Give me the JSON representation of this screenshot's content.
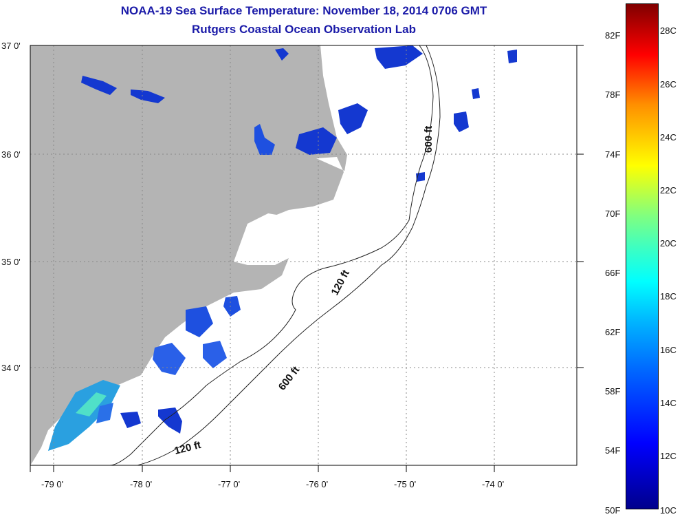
{
  "title": {
    "line1": "NOAA-19 Sea Surface Temperature:  November 18, 2014 0706 GMT",
    "line2": "Rutgers Coastal Ocean Observation Lab"
  },
  "axes": {
    "lat_labels": [
      "37 0'",
      "36 0'",
      "35 0'",
      "34 0'"
    ],
    "lon_labels": [
      "-79 0'",
      "-78 0'",
      "-77 0'",
      "-76 0'",
      "-75 0'",
      "-74 0'"
    ]
  },
  "isobaths": [
    {
      "label": "600 ft"
    },
    {
      "label": "120 ft"
    },
    {
      "label": "600 ft"
    },
    {
      "label": "120 ft"
    }
  ],
  "colorbar": {
    "fahrenheit_labels": [
      "82F",
      "78F",
      "74F",
      "70F",
      "66F",
      "62F",
      "58F",
      "54F",
      "50F"
    ],
    "celsius_labels": [
      "28C",
      "26C",
      "24C",
      "22C",
      "20C",
      "18C",
      "16C",
      "14C",
      "12C",
      "10C"
    ],
    "colors": {
      "cold": "#00008c",
      "mid": "#00ffff",
      "warm": "#ffff00",
      "hot": "#800000"
    }
  },
  "colors": {
    "land": "#b4b4b4",
    "water": "#ffffff",
    "title": "#1a1aa8"
  }
}
